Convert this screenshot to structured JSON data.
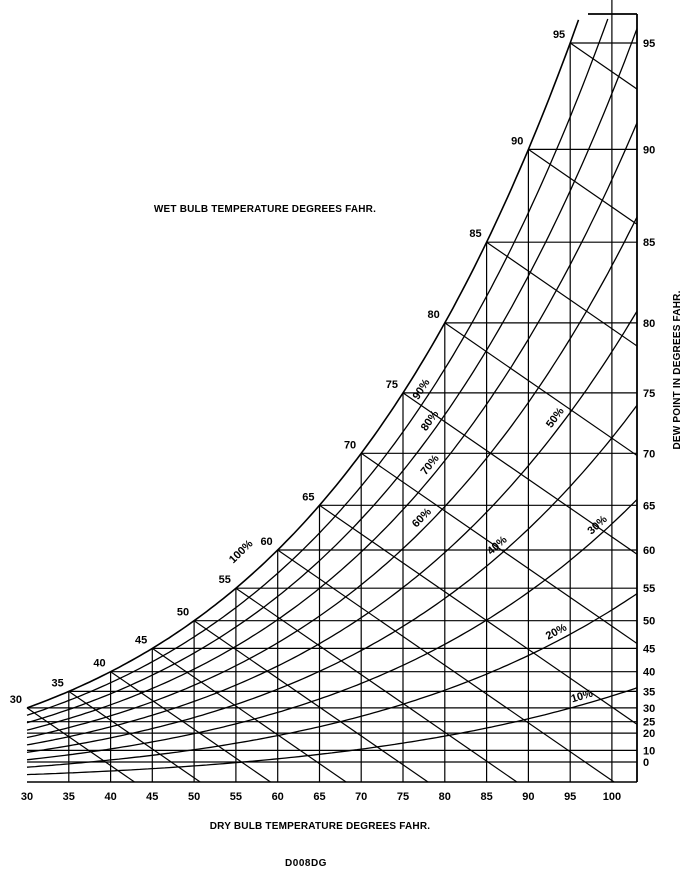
{
  "chart_data": {
    "type": "line",
    "title": "",
    "wet_bulb_label": "WET BULB TEMPERATURE DEGREES FAHR.",
    "xlabel": "DRY BULB TEMPERATURE DEGREES FAHR.",
    "ylabel": "DEW POINT IN DEGREES FAHR.",
    "figure_id": "D008DG",
    "xlim": [
      30,
      103
    ],
    "x_ticks": [
      "30",
      "35",
      "40",
      "45",
      "50",
      "55",
      "60",
      "65",
      "70",
      "75",
      "80",
      "85",
      "90",
      "95",
      "100"
    ],
    "dew_point_ticks": [
      "0",
      "10",
      "20",
      "25",
      "30",
      "35",
      "40",
      "45",
      "50",
      "55",
      "60",
      "65",
      "70",
      "75",
      "80",
      "85",
      "90",
      "95"
    ],
    "wet_bulb_ticks": [
      "30",
      "35",
      "40",
      "45",
      "50",
      "55",
      "60",
      "65",
      "70",
      "75",
      "80",
      "85",
      "90",
      "95"
    ],
    "relative_humidity_labels": [
      "100%",
      "90%",
      "80%",
      "70%",
      "60%",
      "50%",
      "40%",
      "30%",
      "20%",
      "10%"
    ],
    "relative_humidity_values": [
      100,
      90,
      80,
      70,
      60,
      50,
      40,
      30,
      20,
      10
    ]
  }
}
